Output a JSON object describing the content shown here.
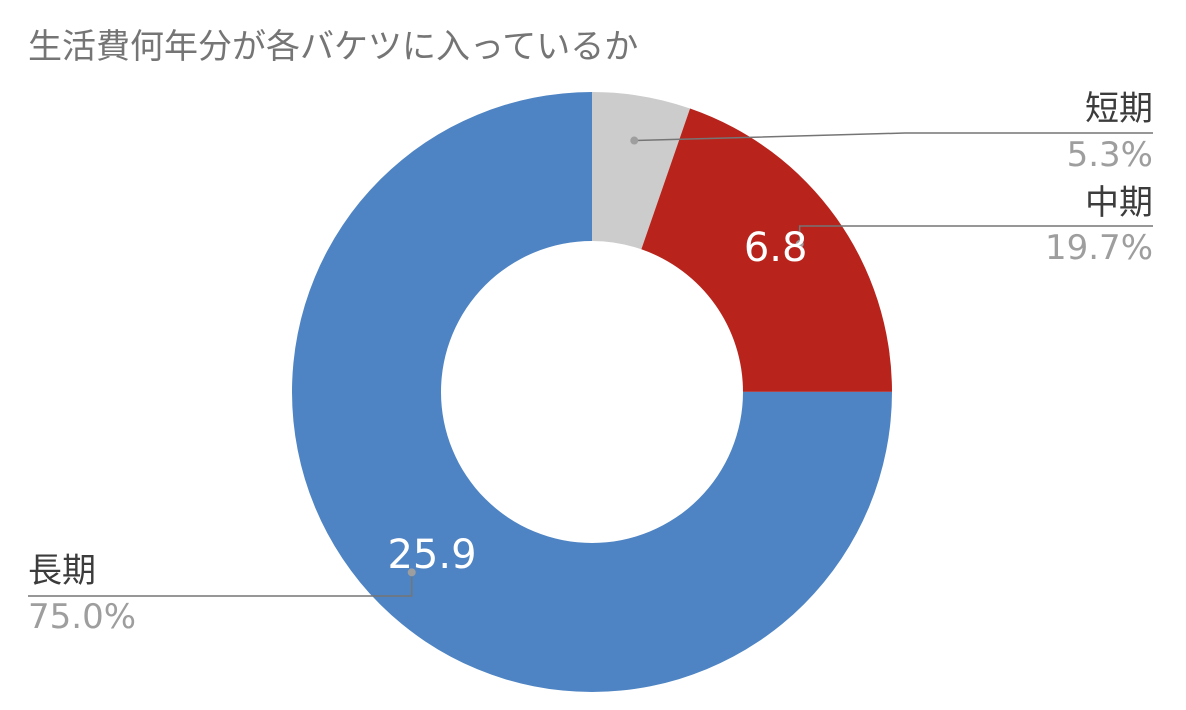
{
  "chart_data": {
    "type": "pie",
    "variant": "donut",
    "title": "生活費何年分が各バケツに入っているか",
    "slices": [
      {
        "label": "短期",
        "value": 1.83,
        "percent_label": "5.3%",
        "value_label": "",
        "color": "#cccccc"
      },
      {
        "label": "中期",
        "value": 6.8,
        "percent_label": "19.7%",
        "value_label": "6.8",
        "color": "#b8241c"
      },
      {
        "label": "長期",
        "value": 25.9,
        "percent_label": "75.0%",
        "value_label": "25.9",
        "color": "#4e84c3"
      }
    ],
    "legend": "none"
  }
}
